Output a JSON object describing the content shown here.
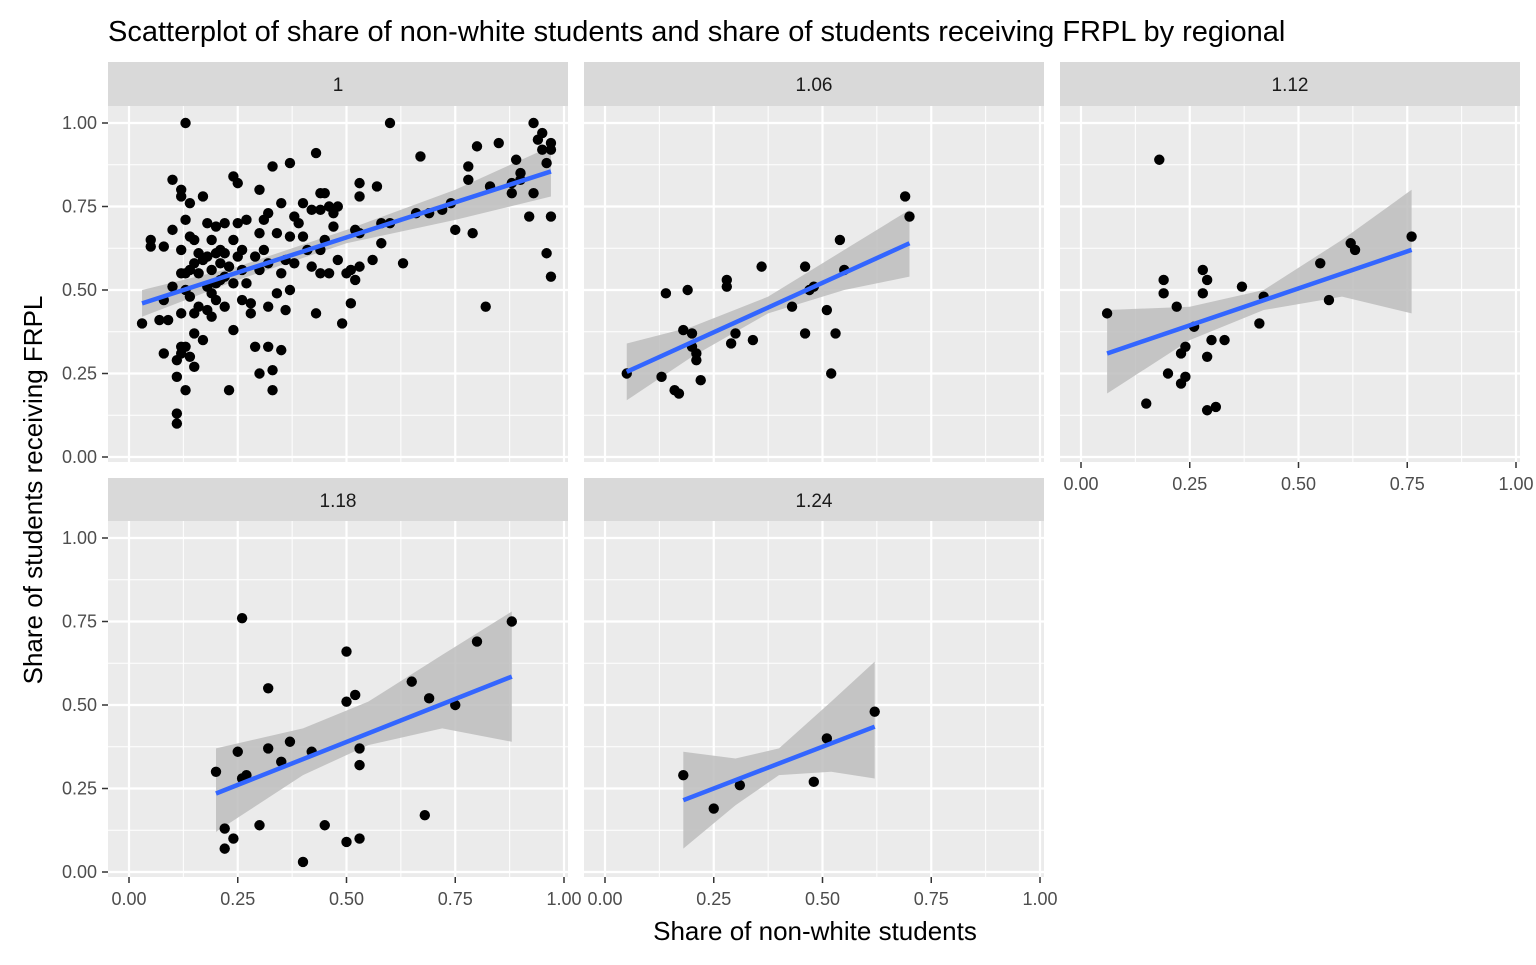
{
  "chart_data": {
    "type": "scatter",
    "title": "Scatterplot of share of non-white students and share of students receiving FRPL by regional",
    "xlabel": "Share of non-white students",
    "ylabel": "Share of students receiving FRPL",
    "xlim": [
      0,
      1
    ],
    "ylim": [
      0,
      1
    ],
    "x_ticks": [
      "0.00",
      "0.25",
      "0.50",
      "0.75",
      "1.00"
    ],
    "y_ticks": [
      "0.00",
      "0.25",
      "0.50",
      "0.75",
      "1.00"
    ],
    "grid": true,
    "legend": "none",
    "colors": {
      "panel_bg": "#ebebeb",
      "strip_bg": "#d9d9d9",
      "grid": "#ffffff",
      "point": "#000000",
      "fit_line": "#3366ff",
      "ribbon": "#bdbdbd"
    },
    "facets": [
      {
        "label": "1",
        "fit": {
          "x0": 0.03,
          "y0": 0.46,
          "x1": 0.97,
          "y1": 0.855
        },
        "band": [
          [
            0.03,
            0.42,
            0.5
          ],
          [
            0.25,
            0.53,
            0.57
          ],
          [
            0.5,
            0.64,
            0.68
          ],
          [
            0.75,
            0.71,
            0.8
          ],
          [
            0.97,
            0.78,
            0.93
          ]
        ],
        "points": [
          [
            0.03,
            0.4
          ],
          [
            0.05,
            0.63
          ],
          [
            0.05,
            0.65
          ],
          [
            0.07,
            0.41
          ],
          [
            0.08,
            0.47
          ],
          [
            0.08,
            0.63
          ],
          [
            0.08,
            0.31
          ],
          [
            0.09,
            0.41
          ],
          [
            0.1,
            0.83
          ],
          [
            0.1,
            0.68
          ],
          [
            0.1,
            0.51
          ],
          [
            0.11,
            0.24
          ],
          [
            0.11,
            0.13
          ],
          [
            0.11,
            0.1
          ],
          [
            0.11,
            0.29
          ],
          [
            0.12,
            0.78
          ],
          [
            0.12,
            0.8
          ],
          [
            0.12,
            0.62
          ],
          [
            0.12,
            0.55
          ],
          [
            0.12,
            0.43
          ],
          [
            0.12,
            0.31
          ],
          [
            0.12,
            0.33
          ],
          [
            0.13,
            1.0
          ],
          [
            0.13,
            0.71
          ],
          [
            0.13,
            0.55
          ],
          [
            0.13,
            0.5
          ],
          [
            0.13,
            0.33
          ],
          [
            0.13,
            0.2
          ],
          [
            0.14,
            0.76
          ],
          [
            0.14,
            0.66
          ],
          [
            0.14,
            0.56
          ],
          [
            0.14,
            0.48
          ],
          [
            0.14,
            0.3
          ],
          [
            0.15,
            0.65
          ],
          [
            0.15,
            0.58
          ],
          [
            0.15,
            0.43
          ],
          [
            0.15,
            0.37
          ],
          [
            0.15,
            0.27
          ],
          [
            0.16,
            0.61
          ],
          [
            0.16,
            0.55
          ],
          [
            0.16,
            0.45
          ],
          [
            0.17,
            0.78
          ],
          [
            0.17,
            0.59
          ],
          [
            0.17,
            0.35
          ],
          [
            0.18,
            0.7
          ],
          [
            0.18,
            0.6
          ],
          [
            0.18,
            0.51
          ],
          [
            0.18,
            0.44
          ],
          [
            0.19,
            0.65
          ],
          [
            0.19,
            0.56
          ],
          [
            0.19,
            0.49
          ],
          [
            0.19,
            0.42
          ],
          [
            0.2,
            0.69
          ],
          [
            0.2,
            0.61
          ],
          [
            0.2,
            0.52
          ],
          [
            0.2,
            0.47
          ],
          [
            0.21,
            0.62
          ],
          [
            0.21,
            0.58
          ],
          [
            0.21,
            0.53
          ],
          [
            0.22,
            0.7
          ],
          [
            0.22,
            0.61
          ],
          [
            0.22,
            0.54
          ],
          [
            0.22,
            0.45
          ],
          [
            0.23,
            0.57
          ],
          [
            0.23,
            0.2
          ],
          [
            0.24,
            0.84
          ],
          [
            0.24,
            0.65
          ],
          [
            0.24,
            0.52
          ],
          [
            0.24,
            0.38
          ],
          [
            0.25,
            0.82
          ],
          [
            0.25,
            0.7
          ],
          [
            0.25,
            0.6
          ],
          [
            0.26,
            0.62
          ],
          [
            0.26,
            0.56
          ],
          [
            0.26,
            0.47
          ],
          [
            0.27,
            0.71
          ],
          [
            0.27,
            0.52
          ],
          [
            0.28,
            0.46
          ],
          [
            0.28,
            0.43
          ],
          [
            0.29,
            0.6
          ],
          [
            0.29,
            0.33
          ],
          [
            0.3,
            0.8
          ],
          [
            0.3,
            0.67
          ],
          [
            0.3,
            0.56
          ],
          [
            0.3,
            0.25
          ],
          [
            0.31,
            0.71
          ],
          [
            0.31,
            0.62
          ],
          [
            0.32,
            0.73
          ],
          [
            0.32,
            0.58
          ],
          [
            0.32,
            0.45
          ],
          [
            0.32,
            0.33
          ],
          [
            0.33,
            0.87
          ],
          [
            0.33,
            0.2
          ],
          [
            0.33,
            0.26
          ],
          [
            0.34,
            0.67
          ],
          [
            0.34,
            0.49
          ],
          [
            0.35,
            0.76
          ],
          [
            0.35,
            0.55
          ],
          [
            0.35,
            0.32
          ],
          [
            0.36,
            0.59
          ],
          [
            0.36,
            0.44
          ],
          [
            0.37,
            0.88
          ],
          [
            0.37,
            0.66
          ],
          [
            0.37,
            0.5
          ],
          [
            0.38,
            0.72
          ],
          [
            0.38,
            0.58
          ],
          [
            0.39,
            0.7
          ],
          [
            0.4,
            0.76
          ],
          [
            0.4,
            0.66
          ],
          [
            0.41,
            0.62
          ],
          [
            0.42,
            0.74
          ],
          [
            0.42,
            0.57
          ],
          [
            0.43,
            0.91
          ],
          [
            0.43,
            0.43
          ],
          [
            0.44,
            0.79
          ],
          [
            0.44,
            0.74
          ],
          [
            0.44,
            0.62
          ],
          [
            0.44,
            0.55
          ],
          [
            0.45,
            0.79
          ],
          [
            0.45,
            0.65
          ],
          [
            0.46,
            0.75
          ],
          [
            0.46,
            0.55
          ],
          [
            0.47,
            0.73
          ],
          [
            0.47,
            0.69
          ],
          [
            0.48,
            0.59
          ],
          [
            0.48,
            0.75
          ],
          [
            0.49,
            0.4
          ],
          [
            0.5,
            0.55
          ],
          [
            0.51,
            0.56
          ],
          [
            0.51,
            0.46
          ],
          [
            0.52,
            0.68
          ],
          [
            0.52,
            0.53
          ],
          [
            0.53,
            0.78
          ],
          [
            0.53,
            0.82
          ],
          [
            0.53,
            0.67
          ],
          [
            0.53,
            0.57
          ],
          [
            0.56,
            0.59
          ],
          [
            0.57,
            0.81
          ],
          [
            0.58,
            0.64
          ],
          [
            0.58,
            0.7
          ],
          [
            0.6,
            1.0
          ],
          [
            0.6,
            0.7
          ],
          [
            0.63,
            0.58
          ],
          [
            0.66,
            0.73
          ],
          [
            0.67,
            0.9
          ],
          [
            0.69,
            0.73
          ],
          [
            0.72,
            0.74
          ],
          [
            0.74,
            0.76
          ],
          [
            0.75,
            0.68
          ],
          [
            0.78,
            0.87
          ],
          [
            0.78,
            0.83
          ],
          [
            0.79,
            0.67
          ],
          [
            0.8,
            0.93
          ],
          [
            0.82,
            0.45
          ],
          [
            0.83,
            0.81
          ],
          [
            0.85,
            0.94
          ],
          [
            0.88,
            0.82
          ],
          [
            0.88,
            0.79
          ],
          [
            0.89,
            0.89
          ],
          [
            0.9,
            0.83
          ],
          [
            0.9,
            0.85
          ],
          [
            0.92,
            0.72
          ],
          [
            0.93,
            0.79
          ],
          [
            0.93,
            1.0
          ],
          [
            0.94,
            0.95
          ],
          [
            0.95,
            0.92
          ],
          [
            0.95,
            0.97
          ],
          [
            0.96,
            0.61
          ],
          [
            0.96,
            0.88
          ],
          [
            0.97,
            0.72
          ],
          [
            0.97,
            0.54
          ],
          [
            0.97,
            0.94
          ],
          [
            0.97,
            0.92
          ]
        ]
      },
      {
        "label": "1.06",
        "fit": {
          "x0": 0.05,
          "y0": 0.255,
          "x1": 0.7,
          "y1": 0.64
        },
        "band": [
          [
            0.05,
            0.17,
            0.34
          ],
          [
            0.2,
            0.3,
            0.39
          ],
          [
            0.375,
            0.43,
            0.48
          ],
          [
            0.55,
            0.5,
            0.62
          ],
          [
            0.7,
            0.54,
            0.74
          ]
        ],
        "points": [
          [
            0.05,
            0.25
          ],
          [
            0.13,
            0.24
          ],
          [
            0.14,
            0.49
          ],
          [
            0.16,
            0.2
          ],
          [
            0.17,
            0.19
          ],
          [
            0.18,
            0.38
          ],
          [
            0.19,
            0.5
          ],
          [
            0.2,
            0.37
          ],
          [
            0.2,
            0.33
          ],
          [
            0.21,
            0.31
          ],
          [
            0.21,
            0.29
          ],
          [
            0.22,
            0.23
          ],
          [
            0.28,
            0.51
          ],
          [
            0.28,
            0.53
          ],
          [
            0.29,
            0.34
          ],
          [
            0.3,
            0.37
          ],
          [
            0.34,
            0.35
          ],
          [
            0.36,
            0.57
          ],
          [
            0.43,
            0.45
          ],
          [
            0.46,
            0.57
          ],
          [
            0.46,
            0.37
          ],
          [
            0.47,
            0.5
          ],
          [
            0.48,
            0.51
          ],
          [
            0.51,
            0.44
          ],
          [
            0.52,
            0.25
          ],
          [
            0.53,
            0.37
          ],
          [
            0.54,
            0.65
          ],
          [
            0.55,
            0.56
          ],
          [
            0.69,
            0.78
          ],
          [
            0.7,
            0.72
          ]
        ]
      },
      {
        "label": "1.12",
        "fit": {
          "x0": 0.06,
          "y0": 0.31,
          "x1": 0.76,
          "y1": 0.62
        },
        "band": [
          [
            0.06,
            0.19,
            0.44
          ],
          [
            0.25,
            0.35,
            0.45
          ],
          [
            0.42,
            0.44,
            0.5
          ],
          [
            0.6,
            0.48,
            0.65
          ],
          [
            0.76,
            0.43,
            0.8
          ]
        ],
        "points": [
          [
            0.06,
            0.43
          ],
          [
            0.15,
            0.16
          ],
          [
            0.18,
            0.89
          ],
          [
            0.19,
            0.53
          ],
          [
            0.19,
            0.49
          ],
          [
            0.2,
            0.25
          ],
          [
            0.22,
            0.45
          ],
          [
            0.23,
            0.22
          ],
          [
            0.23,
            0.31
          ],
          [
            0.24,
            0.24
          ],
          [
            0.24,
            0.33
          ],
          [
            0.26,
            0.39
          ],
          [
            0.28,
            0.49
          ],
          [
            0.28,
            0.56
          ],
          [
            0.29,
            0.14
          ],
          [
            0.29,
            0.3
          ],
          [
            0.29,
            0.53
          ],
          [
            0.3,
            0.35
          ],
          [
            0.31,
            0.15
          ],
          [
            0.33,
            0.35
          ],
          [
            0.37,
            0.51
          ],
          [
            0.41,
            0.4
          ],
          [
            0.42,
            0.48
          ],
          [
            0.55,
            0.58
          ],
          [
            0.57,
            0.47
          ],
          [
            0.62,
            0.64
          ],
          [
            0.63,
            0.62
          ],
          [
            0.76,
            0.66
          ]
        ]
      },
      {
        "label": "1.18",
        "fit": {
          "x0": 0.2,
          "y0": 0.235,
          "x1": 0.88,
          "y1": 0.585
        },
        "band": [
          [
            0.2,
            0.12,
            0.37
          ],
          [
            0.4,
            0.29,
            0.43
          ],
          [
            0.55,
            0.38,
            0.51
          ],
          [
            0.72,
            0.43,
            0.65
          ],
          [
            0.88,
            0.39,
            0.78
          ]
        ],
        "points": [
          [
            0.2,
            0.3
          ],
          [
            0.22,
            0.07
          ],
          [
            0.22,
            0.13
          ],
          [
            0.24,
            0.1
          ],
          [
            0.25,
            0.36
          ],
          [
            0.26,
            0.76
          ],
          [
            0.26,
            0.28
          ],
          [
            0.27,
            0.29
          ],
          [
            0.3,
            0.14
          ],
          [
            0.32,
            0.37
          ],
          [
            0.32,
            0.55
          ],
          [
            0.35,
            0.33
          ],
          [
            0.37,
            0.39
          ],
          [
            0.4,
            0.03
          ],
          [
            0.42,
            0.36
          ],
          [
            0.45,
            0.14
          ],
          [
            0.5,
            0.66
          ],
          [
            0.5,
            0.51
          ],
          [
            0.5,
            0.09
          ],
          [
            0.52,
            0.53
          ],
          [
            0.53,
            0.1
          ],
          [
            0.53,
            0.32
          ],
          [
            0.53,
            0.37
          ],
          [
            0.65,
            0.57
          ],
          [
            0.68,
            0.17
          ],
          [
            0.69,
            0.52
          ],
          [
            0.75,
            0.5
          ],
          [
            0.8,
            0.69
          ],
          [
            0.88,
            0.75
          ]
        ]
      },
      {
        "label": "1.24",
        "fit": {
          "x0": 0.18,
          "y0": 0.215,
          "x1": 0.62,
          "y1": 0.435
        },
        "band": [
          [
            0.18,
            0.07,
            0.36
          ],
          [
            0.3,
            0.2,
            0.34
          ],
          [
            0.4,
            0.29,
            0.37
          ],
          [
            0.52,
            0.3,
            0.51
          ],
          [
            0.62,
            0.28,
            0.63
          ]
        ],
        "points": [
          [
            0.18,
            0.29
          ],
          [
            0.25,
            0.19
          ],
          [
            0.31,
            0.26
          ],
          [
            0.48,
            0.27
          ],
          [
            0.51,
            0.4
          ],
          [
            0.62,
            0.48
          ]
        ]
      }
    ]
  }
}
